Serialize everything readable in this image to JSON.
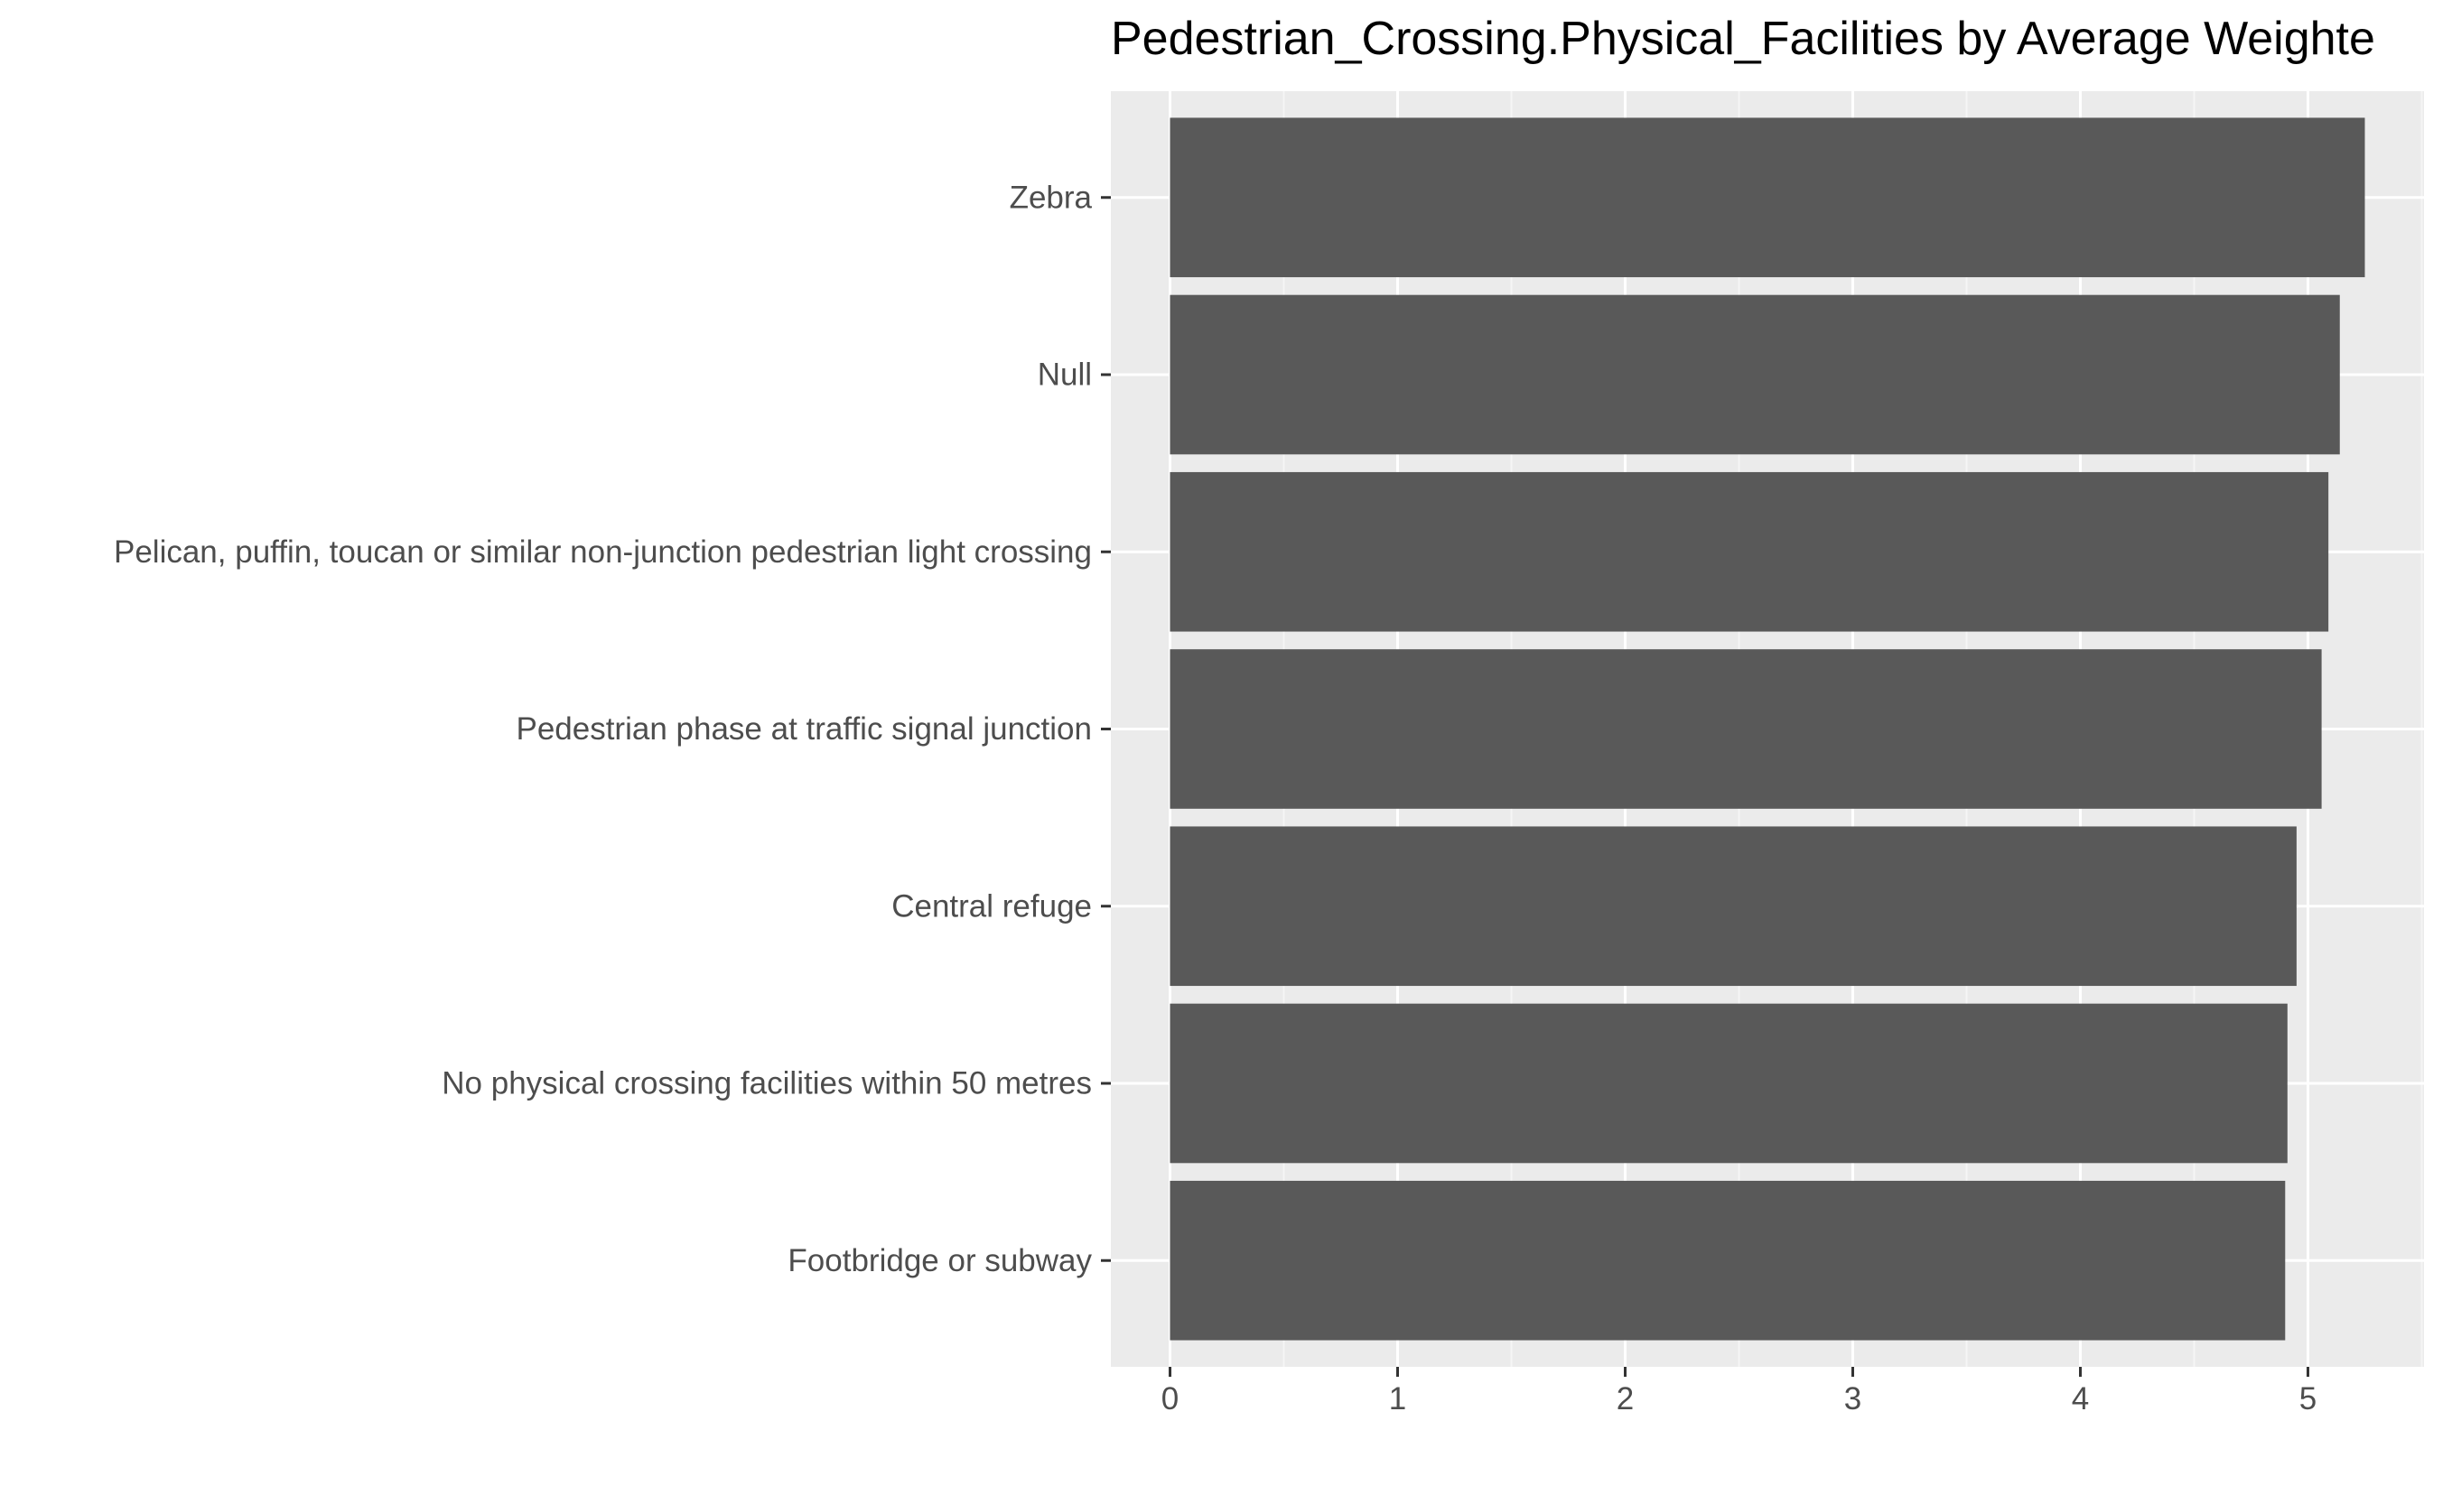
{
  "chart_data": {
    "type": "bar",
    "orientation": "horizontal",
    "title": "Pedestrian_Crossing.Physical_Facilities by Average Weighte",
    "xlabel": "",
    "ylabel": "",
    "categories": [
      "Zebra",
      "Null",
      "Pelican, puffin, toucan or similar non-junction pedestrian light crossing",
      "Pedestrian phase at traffic signal junction",
      "Central refuge",
      "No physical crossing facilities within 50 metres",
      "Footbridge or subway"
    ],
    "values": [
      5.25,
      5.14,
      5.09,
      5.06,
      4.95,
      4.91,
      4.9
    ],
    "xlim": [
      -0.26,
      5.51
    ],
    "x_ticks": [
      "0",
      "1",
      "2",
      "3",
      "4",
      "5"
    ],
    "grid": true,
    "legend": "none",
    "colors": {
      "bar": "#595959",
      "panel": "#EBEBEB",
      "grid_major": "#FFFFFF",
      "grid_minor": "#F5F5F5",
      "tick_text": "#4D4D4D",
      "axis_tick": "#333333",
      "title": "#000000"
    }
  }
}
